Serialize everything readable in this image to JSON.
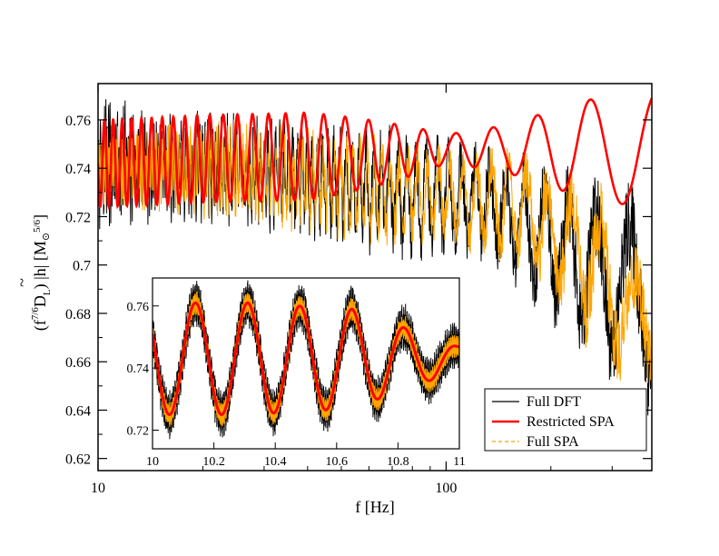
{
  "chart_data": [
    {
      "name": "main",
      "type": "line",
      "xscale": "log",
      "xlim": [
        10,
        390
      ],
      "ylim": [
        0.615,
        0.775
      ],
      "xlabel": "f [Hz]",
      "ylabel_parts": {
        "open": "(f",
        "exp": "7/6",
        "dl": "D",
        "dl_sub": "L",
        "mid": ") |",
        "h": "h",
        "tilde": "~",
        "close": "| [M",
        "msub": "⊙",
        "msup": "5/6",
        "end": "]"
      },
      "x_ticks": [
        10,
        100
      ],
      "x_tick_labels": [
        "10",
        "100"
      ],
      "y_ticks": [
        0.62,
        0.64,
        0.66,
        0.68,
        0.7,
        0.72,
        0.74,
        0.76
      ],
      "y_tick_labels": [
        "0.62",
        "0.64",
        "0.66",
        "0.68",
        "0.7",
        "0.72",
        "0.74",
        "0.76"
      ],
      "legend_position": "lower-right",
      "series": [
        {
          "name": "Full DFT",
          "color": "#000000",
          "style": "solid",
          "f": [
            10,
            12,
            15,
            20,
            30,
            50,
            70,
            100,
            130,
            160,
            200,
            250,
            300,
            350,
            390
          ],
          "mean": [
            0.742,
            0.742,
            0.741,
            0.74,
            0.738,
            0.734,
            0.73,
            0.728,
            0.725,
            0.718,
            0.71,
            0.7,
            0.692,
            0.688,
            0.686
          ],
          "half_width": [
            0.024,
            0.022,
            0.02,
            0.02,
            0.021,
            0.023,
            0.024,
            0.022,
            0.022,
            0.025,
            0.03,
            0.034,
            0.036,
            0.04,
            0.042
          ]
        },
        {
          "name": "Restricted SPA",
          "color": "#ff0000",
          "style": "solid",
          "f": [
            10,
            20,
            40,
            60,
            80,
            100,
            150,
            200,
            250,
            300,
            350,
            390
          ],
          "mean": [
            0.742,
            0.744,
            0.745,
            0.746,
            0.747,
            0.748,
            0.748,
            0.748,
            0.748,
            0.748,
            0.748,
            0.748
          ],
          "half_width": [
            0.018,
            0.018,
            0.018,
            0.014,
            0.01,
            0.006,
            0.01,
            0.016,
            0.02,
            0.022,
            0.024,
            0.024
          ]
        },
        {
          "name": "Full SPA",
          "color": "#ffa500",
          "style": "dashed",
          "f": [
            10,
            12,
            15,
            20,
            30,
            50,
            70,
            100,
            130,
            160,
            200,
            250,
            300,
            350,
            390
          ],
          "mean": [
            0.741,
            0.741,
            0.74,
            0.739,
            0.737,
            0.733,
            0.73,
            0.728,
            0.726,
            0.722,
            0.715,
            0.705,
            0.69,
            0.675,
            0.672
          ],
          "half_width": [
            0.015,
            0.015,
            0.016,
            0.018,
            0.019,
            0.02,
            0.02,
            0.018,
            0.02,
            0.024,
            0.027,
            0.032,
            0.032,
            0.028,
            0.03
          ]
        }
      ],
      "legend": [
        {
          "label": "Full DFT",
          "color": "#000000",
          "style": "solid"
        },
        {
          "label": "Restricted SPA",
          "color": "#ff0000",
          "style": "solid"
        },
        {
          "label": "Full SPA",
          "color": "#ffa500",
          "style": "dashed"
        }
      ]
    },
    {
      "name": "inset",
      "type": "line",
      "xscale": "linear",
      "xlim": [
        10,
        11
      ],
      "ylim": [
        0.714,
        0.769
      ],
      "x_ticks": [
        10,
        10.2,
        10.4,
        10.6,
        10.8,
        11
      ],
      "x_tick_labels": [
        "10",
        "10.2",
        "10.4",
        "10.6",
        "10.8",
        "11"
      ],
      "y_ticks": [
        0.72,
        0.74,
        0.76
      ],
      "y_tick_labels": [
        "0.72",
        "0.74",
        "0.76"
      ],
      "oscillation_peaks_f": [
        10.14,
        10.31,
        10.48,
        10.65,
        10.82,
        10.99
      ],
      "red_center": 0.743,
      "red_amplitude": [
        0.018,
        0.018,
        0.017,
        0.016,
        0.01,
        0.004
      ],
      "black_extra_amplitude": 0.004,
      "orange_band_half_width": 0.004
    }
  ]
}
